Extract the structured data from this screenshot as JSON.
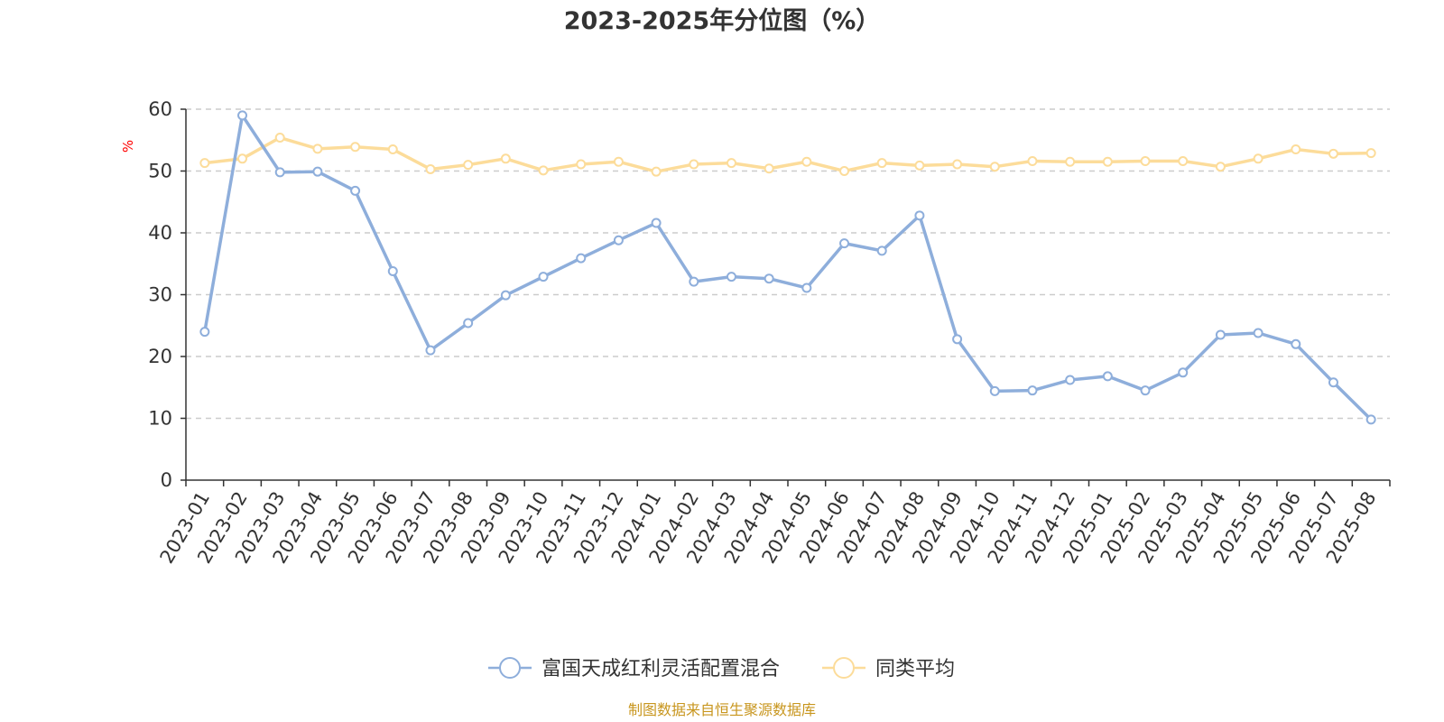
{
  "chart_data": {
    "type": "line",
    "title": "2023-2025年分位图（%）",
    "ylabel": "%",
    "ylim": [
      0,
      60
    ],
    "yticks": [
      0,
      10,
      20,
      30,
      40,
      50,
      60
    ],
    "grid": true,
    "legend_position": "bottom-center",
    "categories": [
      "2023-01",
      "2023-02",
      "2023-03",
      "2023-04",
      "2023-05",
      "2023-06",
      "2023-07",
      "2023-08",
      "2023-09",
      "2023-10",
      "2023-11",
      "2023-12",
      "2024-01",
      "2024-02",
      "2024-03",
      "2024-04",
      "2024-05",
      "2024-06",
      "2024-07",
      "2024-08",
      "2024-09",
      "2024-10",
      "2024-11",
      "2024-12",
      "2025-01",
      "2025-02",
      "2025-03",
      "2025-04",
      "2025-05",
      "2025-06",
      "2025-07",
      "2025-08"
    ],
    "series": [
      {
        "name": "富国天成红利灵活配置混合",
        "color": "#8eaedb",
        "values": [
          24.0,
          59.0,
          49.8,
          49.9,
          46.8,
          33.8,
          21.0,
          25.4,
          29.9,
          32.9,
          35.9,
          38.8,
          41.6,
          32.1,
          32.9,
          32.6,
          31.1,
          38.3,
          37.1,
          42.8,
          22.8,
          14.4,
          14.5,
          16.2,
          16.8,
          14.5,
          17.4,
          23.5,
          23.8,
          22.0,
          15.8,
          9.8
        ]
      },
      {
        "name": "同类平均",
        "color": "#fcdc9a",
        "values": [
          51.3,
          52.0,
          55.4,
          53.6,
          53.9,
          53.5,
          50.3,
          51.0,
          52.0,
          50.1,
          51.1,
          51.5,
          49.9,
          51.1,
          51.3,
          50.4,
          51.5,
          50.0,
          51.3,
          50.9,
          51.1,
          50.7,
          51.6,
          51.5,
          51.5,
          51.6,
          51.6,
          50.7,
          52.0,
          53.5,
          52.8,
          52.9
        ]
      }
    ]
  },
  "footer": {
    "source": "制图数据来自恒生聚源数据库"
  }
}
